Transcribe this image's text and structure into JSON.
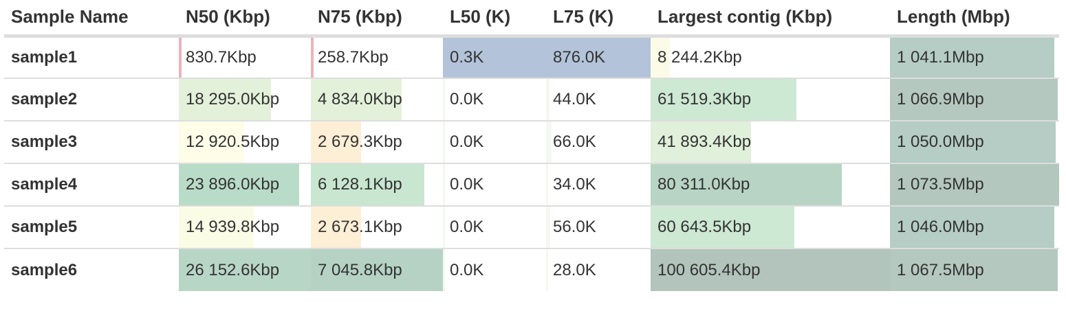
{
  "table": {
    "headers": [
      "Sample Name",
      "N50 (Kbp)",
      "N75 (Kbp)",
      "L50 (K)",
      "L75 (K)",
      "Largest contig (Kbp)",
      "Length (Mbp)"
    ],
    "rows": [
      {
        "name": "sample1",
        "cells": [
          {
            "text": "830.7Kbp",
            "fill": 0.02,
            "color": "#e8b4bc"
          },
          {
            "text": "258.7Kbp",
            "fill": 0.02,
            "color": "#e8b4bc"
          },
          {
            "text": "0.3K",
            "fill": 1.0,
            "color": "#b3c3d9"
          },
          {
            "text": "876.0K",
            "fill": 1.0,
            "color": "#b3c3d9"
          },
          {
            "text": "8 244.2Kbp",
            "fill": 0.08,
            "color": "#fbfbe8"
          },
          {
            "text": "1 041.1Mbp",
            "fill": 0.97,
            "color": "#b5cdc4"
          }
        ]
      },
      {
        "name": "sample2",
        "cells": [
          {
            "text": "18 295.0Kbp",
            "fill": 0.7,
            "color": "#e3f1da"
          },
          {
            "text": "4 834.0Kbp",
            "fill": 0.69,
            "color": "#e3f1da"
          },
          {
            "text": "0.0K",
            "fill": 0.02,
            "color": "#f3f8f0"
          },
          {
            "text": "44.0K",
            "fill": 0.03,
            "color": "#f3f8f0"
          },
          {
            "text": "61 519.3Kbp",
            "fill": 0.61,
            "color": "#cde8d3"
          },
          {
            "text": "1 066.9Mbp",
            "fill": 0.99,
            "color": "#b4c8bf"
          }
        ]
      },
      {
        "name": "sample3",
        "cells": [
          {
            "text": "12 920.5Kbp",
            "fill": 0.49,
            "color": "#fdfde8"
          },
          {
            "text": "2 679.3Kbp",
            "fill": 0.38,
            "color": "#fdeed6"
          },
          {
            "text": "0.0K",
            "fill": 0.02,
            "color": "#f3f8f0"
          },
          {
            "text": "66.0K",
            "fill": 0.05,
            "color": "#f3f8f0"
          },
          {
            "text": "41 893.4Kbp",
            "fill": 0.42,
            "color": "#e0f0db"
          },
          {
            "text": "1 050.0Mbp",
            "fill": 0.98,
            "color": "#b5cdc4"
          }
        ]
      },
      {
        "name": "sample4",
        "cells": [
          {
            "text": "23 896.0Kbp",
            "fill": 0.91,
            "color": "#b9dcc8"
          },
          {
            "text": "6 128.1Kbp",
            "fill": 0.86,
            "color": "#c8e6d0"
          },
          {
            "text": "0.0K",
            "fill": 0.02,
            "color": "#f3f8f0"
          },
          {
            "text": "34.0K",
            "fill": 0.02,
            "color": "#f3f8f0"
          },
          {
            "text": "80 311.0Kbp",
            "fill": 0.8,
            "color": "#b8d4c4"
          },
          {
            "text": "1 073.5Mbp",
            "fill": 1.0,
            "color": "#b3c7be"
          }
        ]
      },
      {
        "name": "sample5",
        "cells": [
          {
            "text": "14 939.8Kbp",
            "fill": 0.57,
            "color": "#fbfce6"
          },
          {
            "text": "2 673.1Kbp",
            "fill": 0.38,
            "color": "#fdeed6"
          },
          {
            "text": "0.0K",
            "fill": 0.02,
            "color": "#f3f8f0"
          },
          {
            "text": "56.0K",
            "fill": 0.04,
            "color": "#f3f8f0"
          },
          {
            "text": "60 643.5Kbp",
            "fill": 0.6,
            "color": "#cde8d3"
          },
          {
            "text": "1 046.0Mbp",
            "fill": 0.97,
            "color": "#b5cdc4"
          }
        ]
      },
      {
        "name": "sample6",
        "cells": [
          {
            "text": "26 152.6Kbp",
            "fill": 1.0,
            "color": "#b8d6c6"
          },
          {
            "text": "7 045.8Kbp",
            "fill": 1.0,
            "color": "#b5d2c4"
          },
          {
            "text": "0.0K",
            "fill": 0.02,
            "color": "#f3f8f0"
          },
          {
            "text": "28.0K",
            "fill": 0.02,
            "color": "#f3f8f0"
          },
          {
            "text": "100 605.4Kbp",
            "fill": 1.0,
            "color": "#b2c4bc"
          },
          {
            "text": "1 067.5Mbp",
            "fill": 0.99,
            "color": "#b4c8bf"
          }
        ]
      }
    ]
  }
}
